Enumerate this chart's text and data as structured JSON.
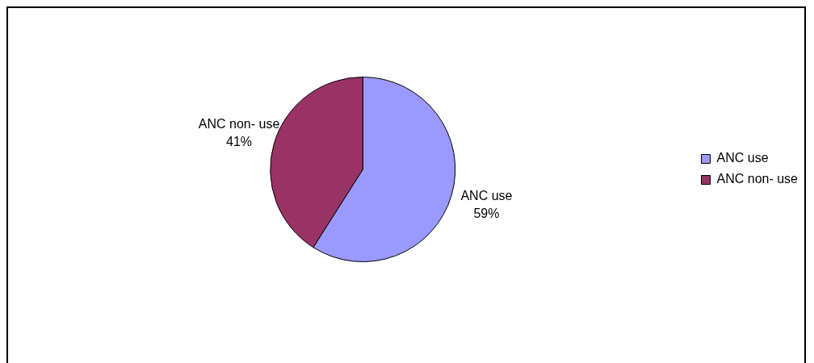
{
  "chart_data": {
    "type": "pie",
    "categories": [
      "ANC use",
      "ANC non- use"
    ],
    "values": [
      59,
      41
    ],
    "colors": [
      "#9999ff",
      "#993366"
    ],
    "value_labels": [
      "59%",
      "41%"
    ],
    "legend": "right"
  }
}
